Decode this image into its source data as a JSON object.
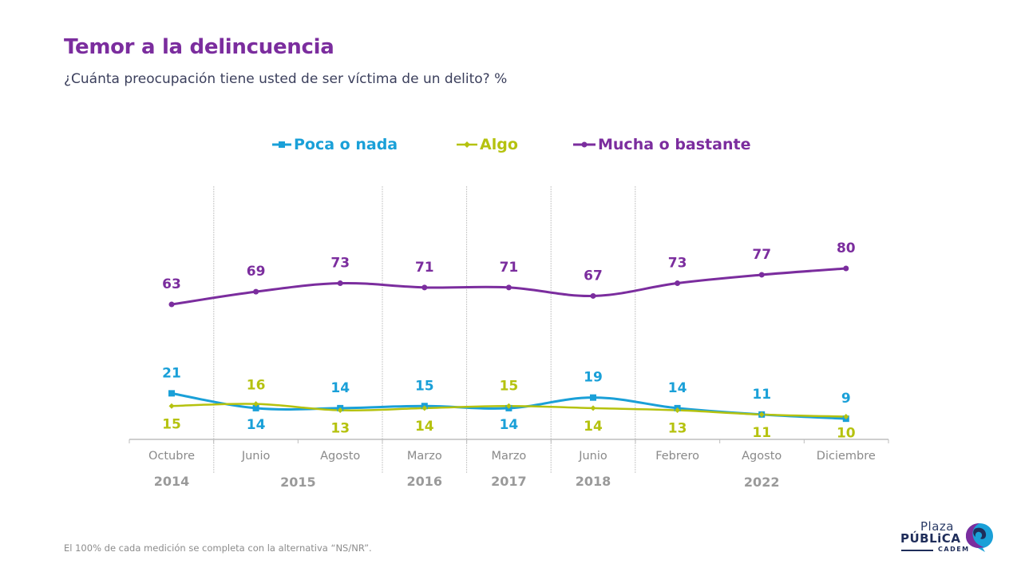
{
  "header": {
    "title": "Temor a la delincuencia",
    "subtitle": "¿Cuánta preocupación tiene usted de ser víctima de un delito? %"
  },
  "footnote": "El 100% de cada medición se completa con la alternativa “NS/NR”.",
  "logo": {
    "line1": "Plaza",
    "line2": "PÚBLiCA",
    "line3": "CADEM"
  },
  "colors": {
    "title": "#7b2d9e",
    "poca": "#1aa0d8",
    "algo": "#b5c20f",
    "mucha": "#7b2d9e",
    "axis": "#bdbdbd",
    "labels": "#8a8a8a"
  },
  "chart_data": {
    "type": "line",
    "title": "Temor a la delincuencia",
    "subtitle": "¿Cuánta preocupación tiene usted de ser víctima de un delito? %",
    "xlabel": "",
    "ylabel": "%",
    "ylim": [
      0,
      100
    ],
    "grid": false,
    "legend_position": "top-center",
    "categories": [
      "Octubre",
      "Junio",
      "Agosto",
      "Marzo",
      "Marzo",
      "Junio",
      "Febrero",
      "Agosto",
      "Diciembre"
    ],
    "year_groups": [
      {
        "label": "2014",
        "start": 0,
        "end": 0
      },
      {
        "label": "2015",
        "start": 1,
        "end": 2
      },
      {
        "label": "2016",
        "start": 3,
        "end": 3
      },
      {
        "label": "2017",
        "start": 4,
        "end": 4
      },
      {
        "label": "2018",
        "start": 5,
        "end": 5
      },
      {
        "label": "2022",
        "start": 6,
        "end": 8
      }
    ],
    "series": [
      {
        "key": "poca",
        "name": "Poca o nada",
        "marker": "square",
        "values": [
          21,
          14,
          14,
          15,
          14,
          19,
          14,
          11,
          9
        ]
      },
      {
        "key": "algo",
        "name": "Algo",
        "marker": "diamond",
        "values": [
          15,
          16,
          13,
          14,
          15,
          14,
          13,
          11,
          10
        ]
      },
      {
        "key": "mucha",
        "name": "Mucha o bastante",
        "marker": "circle",
        "values": [
          63,
          69,
          73,
          71,
          71,
          67,
          73,
          77,
          80
        ]
      }
    ]
  }
}
